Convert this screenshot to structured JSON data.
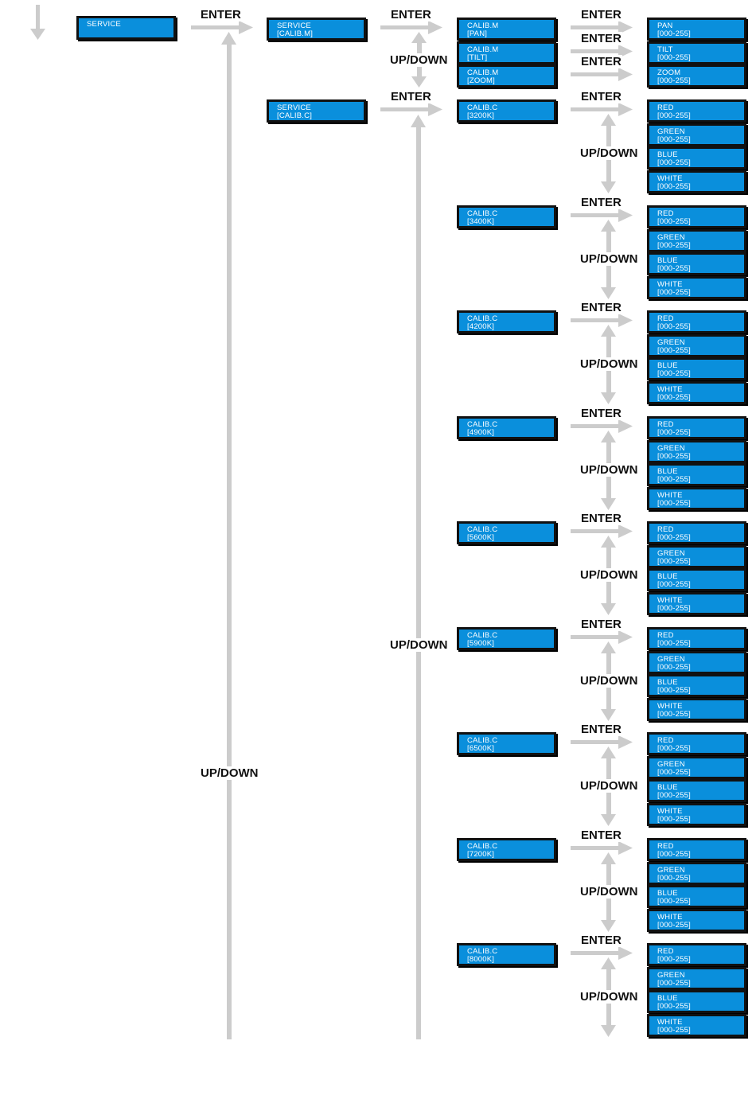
{
  "colors": {
    "box_fill": "#0a8fdc",
    "box_border": "#111111",
    "arrow": "#cccccc",
    "label": "#111111"
  },
  "labels": {
    "enter": "ENTER",
    "updown": "UP/DOWN"
  },
  "boxes": {
    "service": "SERVICE",
    "service_calib_m": "SERVICE\n[CALIB.M]",
    "service_calib_c": "SERVICE\n[CALIB.C]",
    "calib_m_pan": "CALIB.M\n[PAN]",
    "calib_m_tilt": "CALIB.M\n[TILT]",
    "calib_m_zoom": "CALIB.M\n[ZOOM]",
    "pan": "PAN\n[000-255]",
    "tilt": "TILT\n[000-255]",
    "zoom": "ZOOM\n[000-255]"
  },
  "color_temps": [
    {
      "label": "CALIB.C\n[3200K]",
      "channels": [
        "RED\n[000-255]",
        "GREEN\n[000-255]",
        "BLUE\n[000-255]",
        "WHITE\n[000-255]"
      ]
    },
    {
      "label": "CALIB.C\n[3400K]",
      "channels": [
        "RED\n[000-255]",
        "GREEN\n[000-255]",
        "BLUE\n[000-255]",
        "WHITE\n[000-255]"
      ]
    },
    {
      "label": "CALIB.C\n[4200K]",
      "channels": [
        "RED\n[000-255]",
        "GREEN\n[000-255]",
        "BLUE\n[000-255]",
        "WHITE\n[000-255]"
      ]
    },
    {
      "label": "CALIB.C\n[4900K]",
      "channels": [
        "RED\n[000-255]",
        "GREEN\n[000-255]",
        "BLUE\n[000-255]",
        "WHITE\n[000-255]"
      ]
    },
    {
      "label": "CALIB.C\n[5600K]",
      "channels": [
        "RED\n[000-255]",
        "GREEN\n[000-255]",
        "BLUE\n[000-255]",
        "WHITE\n[000-255]"
      ]
    },
    {
      "label": "CALIB.C\n[5900K]",
      "channels": [
        "RED\n[000-255]",
        "GREEN\n[000-255]",
        "BLUE\n[000-255]",
        "WHITE\n[000-255]"
      ]
    },
    {
      "label": "CALIB.C\n[6500K]",
      "channels": [
        "RED\n[000-255]",
        "GREEN\n[000-255]",
        "BLUE\n[000-255]",
        "WHITE\n[000-255]"
      ]
    },
    {
      "label": "CALIB.C\n[7200K]",
      "channels": [
        "RED\n[000-255]",
        "GREEN\n[000-255]",
        "BLUE\n[000-255]",
        "WHITE\n[000-255]"
      ]
    },
    {
      "label": "CALIB.C\n[8000K]",
      "channels": [
        "RED\n[000-255]",
        "GREEN\n[000-255]",
        "BLUE\n[000-255]",
        "WHITE\n[000-255]"
      ]
    }
  ]
}
